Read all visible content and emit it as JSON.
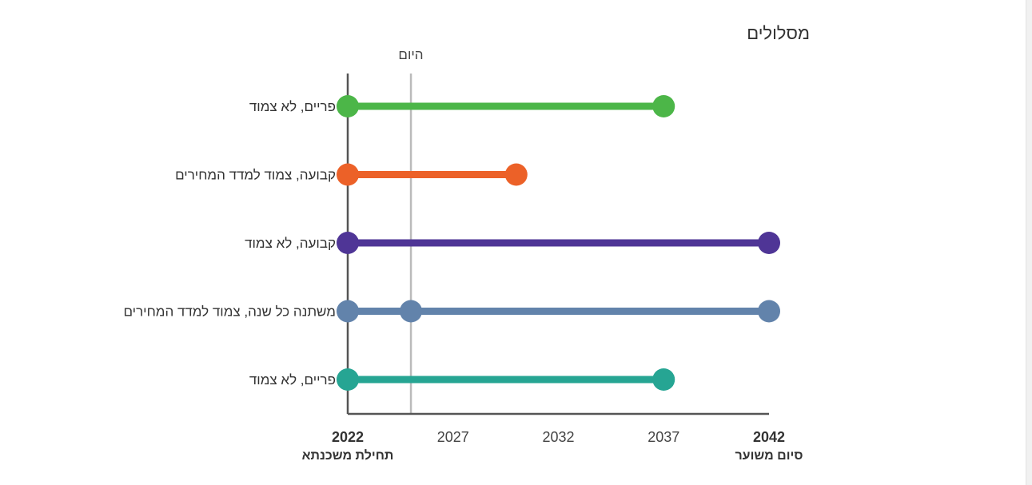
{
  "chart_data": {
    "type": "line",
    "title": "מסלולים",
    "today_label": "היום",
    "today_year": 2025,
    "x_ticks": [
      2022,
      2027,
      2032,
      2037,
      2042
    ],
    "xlim": [
      2022,
      2042
    ],
    "start_caption": "תחילת משכנתא",
    "end_caption": "סיום משוער",
    "series": [
      {
        "name": "פריים, לא צמוד",
        "start": 2022,
        "end": 2037,
        "color": "#4cb648",
        "extra_points": []
      },
      {
        "name": "קבועה, צמוד למדד המחירים",
        "start": 2022,
        "end": 2030,
        "color": "#ec6128",
        "extra_points": []
      },
      {
        "name": "קבועה, לא צמוד",
        "start": 2022,
        "end": 2042,
        "color": "#4f3596",
        "extra_points": []
      },
      {
        "name": "משתנה כל שנה, צמוד למדד המחירים",
        "start": 2022,
        "end": 2042,
        "color": "#6283ab",
        "extra_points": [
          2025
        ]
      },
      {
        "name": "פריים, לא צמוד",
        "start": 2022,
        "end": 2037,
        "color": "#26a593",
        "extra_points": []
      }
    ]
  }
}
